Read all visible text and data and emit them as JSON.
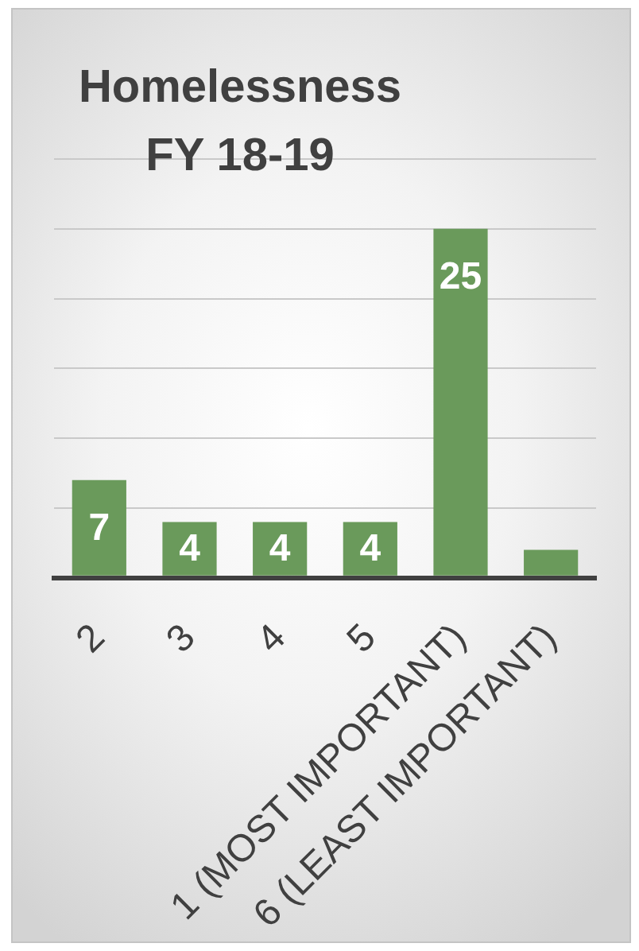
{
  "chart_data": {
    "type": "bar",
    "title": "Homelessness FY 18-19",
    "categories": [
      "2",
      "3",
      "4",
      "5",
      "1 (MOST IMPORTANT)",
      "6 (LEAST IMPORTANT)"
    ],
    "values": [
      7,
      4,
      4,
      4,
      25,
      2
    ],
    "color": "#6a9a5b",
    "value_labels": [
      "7",
      "4",
      "4",
      "4",
      "25",
      null
    ],
    "grid": "y",
    "tick_labels": "x"
  }
}
